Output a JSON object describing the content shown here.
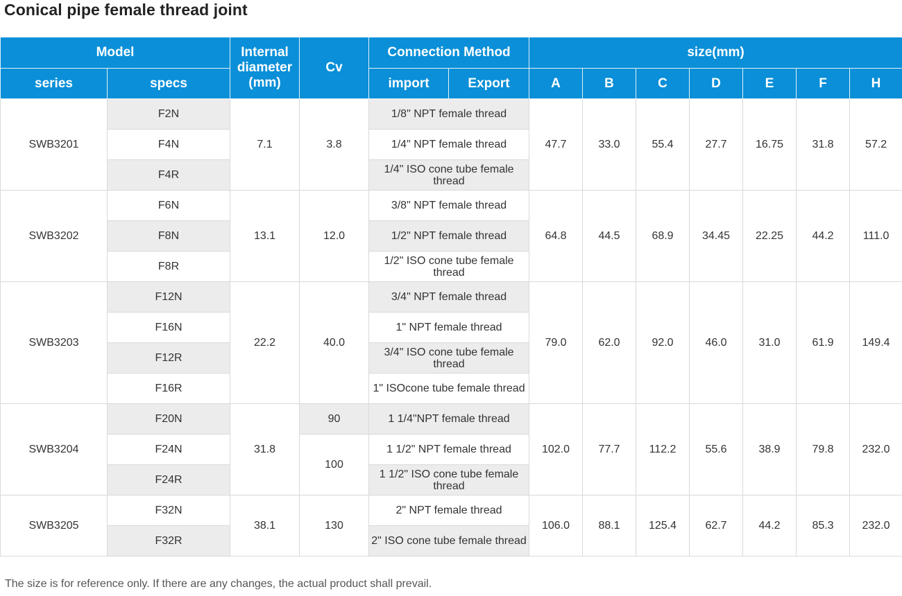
{
  "title": "Conical pipe female thread joint",
  "headers": {
    "model": "Model",
    "internal_diameter": "Internal diameter (mm)",
    "cv": "Cv",
    "connection_method": "Connection Method",
    "size": "size(mm)",
    "series": "series",
    "specs": "specs",
    "import": "import",
    "export": "Export",
    "dims": [
      "A",
      "B",
      "C",
      "D",
      "E",
      "F",
      "H"
    ]
  },
  "groups": [
    {
      "series": "SWB3201",
      "internal_diameter": "7.1",
      "cv": "3.8",
      "specs": [
        "F2N",
        "F4N",
        "F4R"
      ],
      "connections": [
        "1/8\" NPT female thread",
        "1/4\" NPT female thread",
        "1/4\" ISO cone tube female thread"
      ],
      "sizes": [
        "47.7",
        "33.0",
        "55.4",
        "27.7",
        "16.75",
        "31.8",
        "57.2"
      ]
    },
    {
      "series": "SWB3202",
      "internal_diameter": "13.1",
      "cv": "12.0",
      "specs": [
        "F6N",
        "F8N",
        "F8R"
      ],
      "connections": [
        "3/8\" NPT female thread",
        "1/2\" NPT female thread",
        "1/2\" ISO cone tube female thread"
      ],
      "sizes": [
        "64.8",
        "44.5",
        "68.9",
        "34.45",
        "22.25",
        "44.2",
        "111.0"
      ]
    },
    {
      "series": "SWB3203",
      "internal_diameter": "22.2",
      "cv": "40.0",
      "specs": [
        "F12N",
        "F16N",
        "F12R",
        "F16R"
      ],
      "connections": [
        "3/4\" NPT female thread",
        "1\" NPT female thread",
        "3/4\" ISO cone tube female thread",
        "1\" ISOcone tube female thread"
      ],
      "sizes": [
        "79.0",
        "62.0",
        "92.0",
        "46.0",
        "31.0",
        "61.9",
        "149.4"
      ]
    },
    {
      "series": "SWB3204",
      "internal_diameter": "31.8",
      "cv_values": [
        "90",
        "100"
      ],
      "specs": [
        "F20N",
        "F24N",
        "F24R"
      ],
      "connections": [
        "1 1/4\"NPT female thread",
        "1 1/2\" NPT female thread",
        "1 1/2\" ISO cone tube female thread"
      ],
      "sizes": [
        "102.0",
        "77.7",
        "112.2",
        "55.6",
        "38.9",
        "79.8",
        "232.0"
      ]
    },
    {
      "series": "SWB3205",
      "internal_diameter": "38.1",
      "cv": "130",
      "specs": [
        "F32N",
        "F32R"
      ],
      "connections": [
        "2\" NPT female thread",
        "2\" ISO cone tube female thread"
      ],
      "sizes": [
        "106.0",
        "88.1",
        "125.4",
        "62.7",
        "44.2",
        "85.3",
        "232.0"
      ]
    }
  ],
  "footnote": "The size is for reference only. If there are any changes, the actual product shall prevail."
}
